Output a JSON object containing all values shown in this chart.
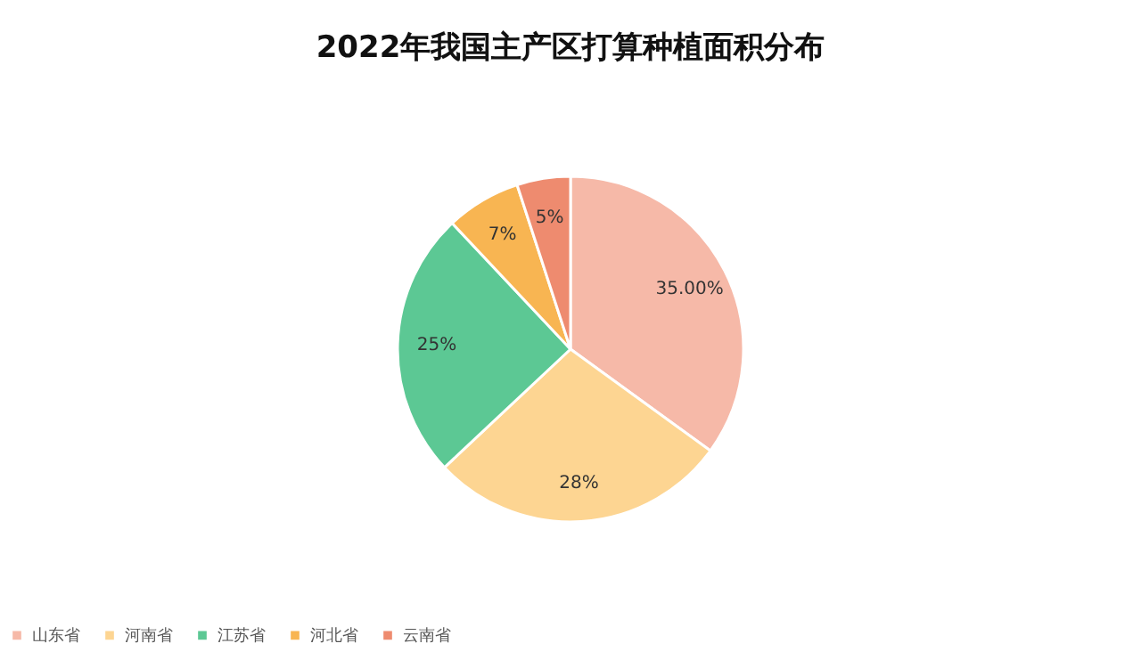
{
  "chart_data": {
    "type": "pie",
    "title": "2022年我国主产区打算种植面积分布",
    "categories": [
      "山东省",
      "河南省",
      "江苏省",
      "河北省",
      "云南省"
    ],
    "values": [
      35,
      28,
      25,
      7,
      5
    ],
    "colors": [
      "#f6b9a8",
      "#fdd592",
      "#5cc894",
      "#f8b552",
      "#ee8b6f"
    ],
    "value_labels": [
      "35.00%",
      "28%",
      "25%",
      "7%",
      "5%"
    ],
    "legend": "bottom"
  }
}
